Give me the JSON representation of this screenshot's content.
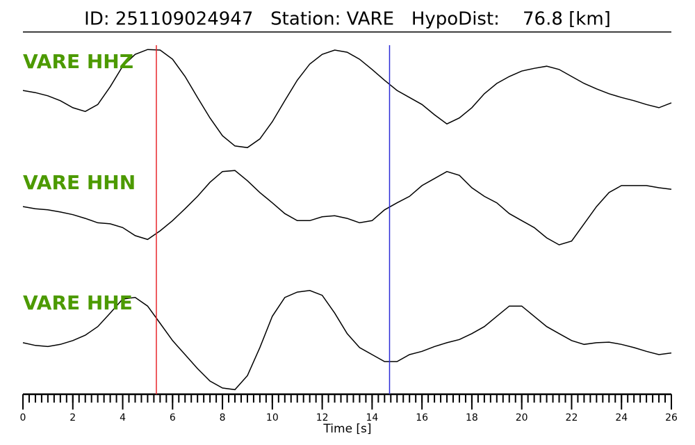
{
  "chart_data": {
    "type": "line",
    "title": "ID: 251109024947   Station: VARE   HypoDist:    76.8 [km]",
    "xlabel": "Time [s]",
    "x": [
      0,
      0.5,
      1,
      1.5,
      2,
      2.5,
      3,
      3.5,
      4,
      4.5,
      5,
      5.5,
      6,
      6.5,
      7,
      7.5,
      8,
      8.5,
      9,
      9.5,
      10,
      10.5,
      11,
      11.5,
      12,
      12.5,
      13,
      13.5,
      14,
      14.5,
      15,
      15.5,
      16,
      16.5,
      17,
      17.5,
      18,
      18.5,
      19,
      19.5,
      20,
      20.5,
      21,
      21.5,
      22,
      22.5,
      23,
      23.5,
      24,
      24.5,
      25,
      25.5,
      26
    ],
    "series": [
      {
        "name": "VARE HHZ",
        "color": "#000000",
        "values": [
          0.16,
          0.12,
          0.06,
          -0.03,
          -0.16,
          -0.23,
          -0.1,
          0.23,
          0.61,
          0.83,
          0.92,
          0.91,
          0.74,
          0.42,
          0.03,
          -0.35,
          -0.68,
          -0.87,
          -0.9,
          -0.74,
          -0.42,
          -0.03,
          0.35,
          0.65,
          0.83,
          0.91,
          0.87,
          0.74,
          0.55,
          0.35,
          0.16,
          0.03,
          -0.1,
          -0.29,
          -0.46,
          -0.35,
          -0.16,
          0.1,
          0.29,
          0.42,
          0.52,
          0.57,
          0.61,
          0.55,
          0.42,
          0.29,
          0.19,
          0.1,
          0.03,
          -0.03,
          -0.1,
          -0.16,
          -0.07
        ]
      },
      {
        "name": "VARE HHN",
        "color": "#000000",
        "values": [
          0.16,
          0.12,
          0.1,
          0.06,
          0.01,
          -0.06,
          -0.14,
          -0.16,
          -0.23,
          -0.38,
          -0.45,
          -0.29,
          -0.1,
          0.12,
          0.35,
          0.61,
          0.81,
          0.83,
          0.64,
          0.42,
          0.23,
          0.03,
          -0.1,
          -0.1,
          -0.03,
          -0.01,
          -0.06,
          -0.14,
          -0.1,
          0.1,
          0.23,
          0.35,
          0.55,
          0.68,
          0.81,
          0.74,
          0.51,
          0.35,
          0.23,
          0.03,
          -0.1,
          -0.23,
          -0.42,
          -0.55,
          -0.48,
          -0.16,
          0.16,
          0.42,
          0.55,
          0.55,
          0.55,
          0.51,
          0.48
        ]
      },
      {
        "name": "VARE HHE",
        "color": "#000000",
        "values": [
          -0.07,
          -0.12,
          -0.14,
          -0.1,
          -0.03,
          0.07,
          0.23,
          0.48,
          0.74,
          0.77,
          0.61,
          0.29,
          -0.03,
          -0.29,
          -0.55,
          -0.78,
          -0.91,
          -0.94,
          -0.68,
          -0.16,
          0.42,
          0.77,
          0.87,
          0.9,
          0.81,
          0.48,
          0.1,
          -0.16,
          -0.29,
          -0.42,
          -0.42,
          -0.29,
          -0.23,
          -0.14,
          -0.07,
          -0.01,
          0.1,
          0.23,
          0.42,
          0.61,
          0.61,
          0.42,
          0.23,
          0.1,
          -0.03,
          -0.1,
          -0.07,
          -0.06,
          -0.1,
          -0.16,
          -0.23,
          -0.29,
          -0.26
        ]
      }
    ],
    "label_color": "#4c9a00",
    "ylim": [
      -1,
      1
    ],
    "markers": [
      {
        "x": 5.35,
        "color": "#e8262b"
      },
      {
        "x": 14.7,
        "color": "#2a2ad6"
      }
    ],
    "xlim": [
      0,
      26
    ],
    "xticks": [
      0,
      2,
      4,
      6,
      8,
      10,
      12,
      14,
      16,
      18,
      20,
      22,
      24,
      26
    ],
    "minor_tick_step": 0.25
  }
}
